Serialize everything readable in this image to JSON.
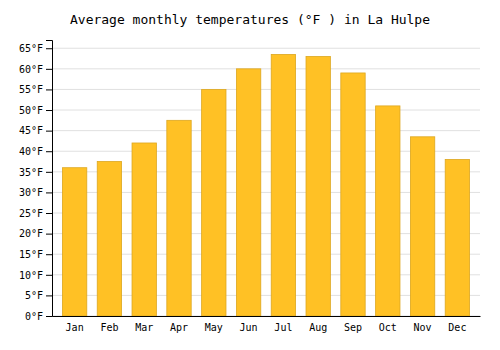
{
  "chart_data": {
    "type": "bar",
    "title": "Average monthly temperatures (°F ) in La Hulpe",
    "categories": [
      "Jan",
      "Feb",
      "Mar",
      "Apr",
      "May",
      "Jun",
      "Jul",
      "Aug",
      "Sep",
      "Oct",
      "Nov",
      "Dec"
    ],
    "values": [
      36,
      37.5,
      42,
      47.5,
      55,
      60,
      63.5,
      63,
      59,
      51,
      43.5,
      38
    ],
    "color": "#FFC125",
    "ylim": [
      0,
      67
    ],
    "yticks": [
      {
        "value": 0,
        "label": "0°F"
      },
      {
        "value": 5,
        "label": "5°F"
      },
      {
        "value": 10,
        "label": "10°F"
      },
      {
        "value": 15,
        "label": "15°F"
      },
      {
        "value": 20,
        "label": "20°F"
      },
      {
        "value": 25,
        "label": "25°F"
      },
      {
        "value": 30,
        "label": "30°F"
      },
      {
        "value": 35,
        "label": "35°F"
      },
      {
        "value": 40,
        "label": "40°F"
      },
      {
        "value": 45,
        "label": "45°F"
      },
      {
        "value": 50,
        "label": "50°F"
      },
      {
        "value": 55,
        "label": "55°F"
      },
      {
        "value": 60,
        "label": "60°F"
      },
      {
        "value": 65,
        "label": "65°F"
      }
    ],
    "grid": true
  }
}
